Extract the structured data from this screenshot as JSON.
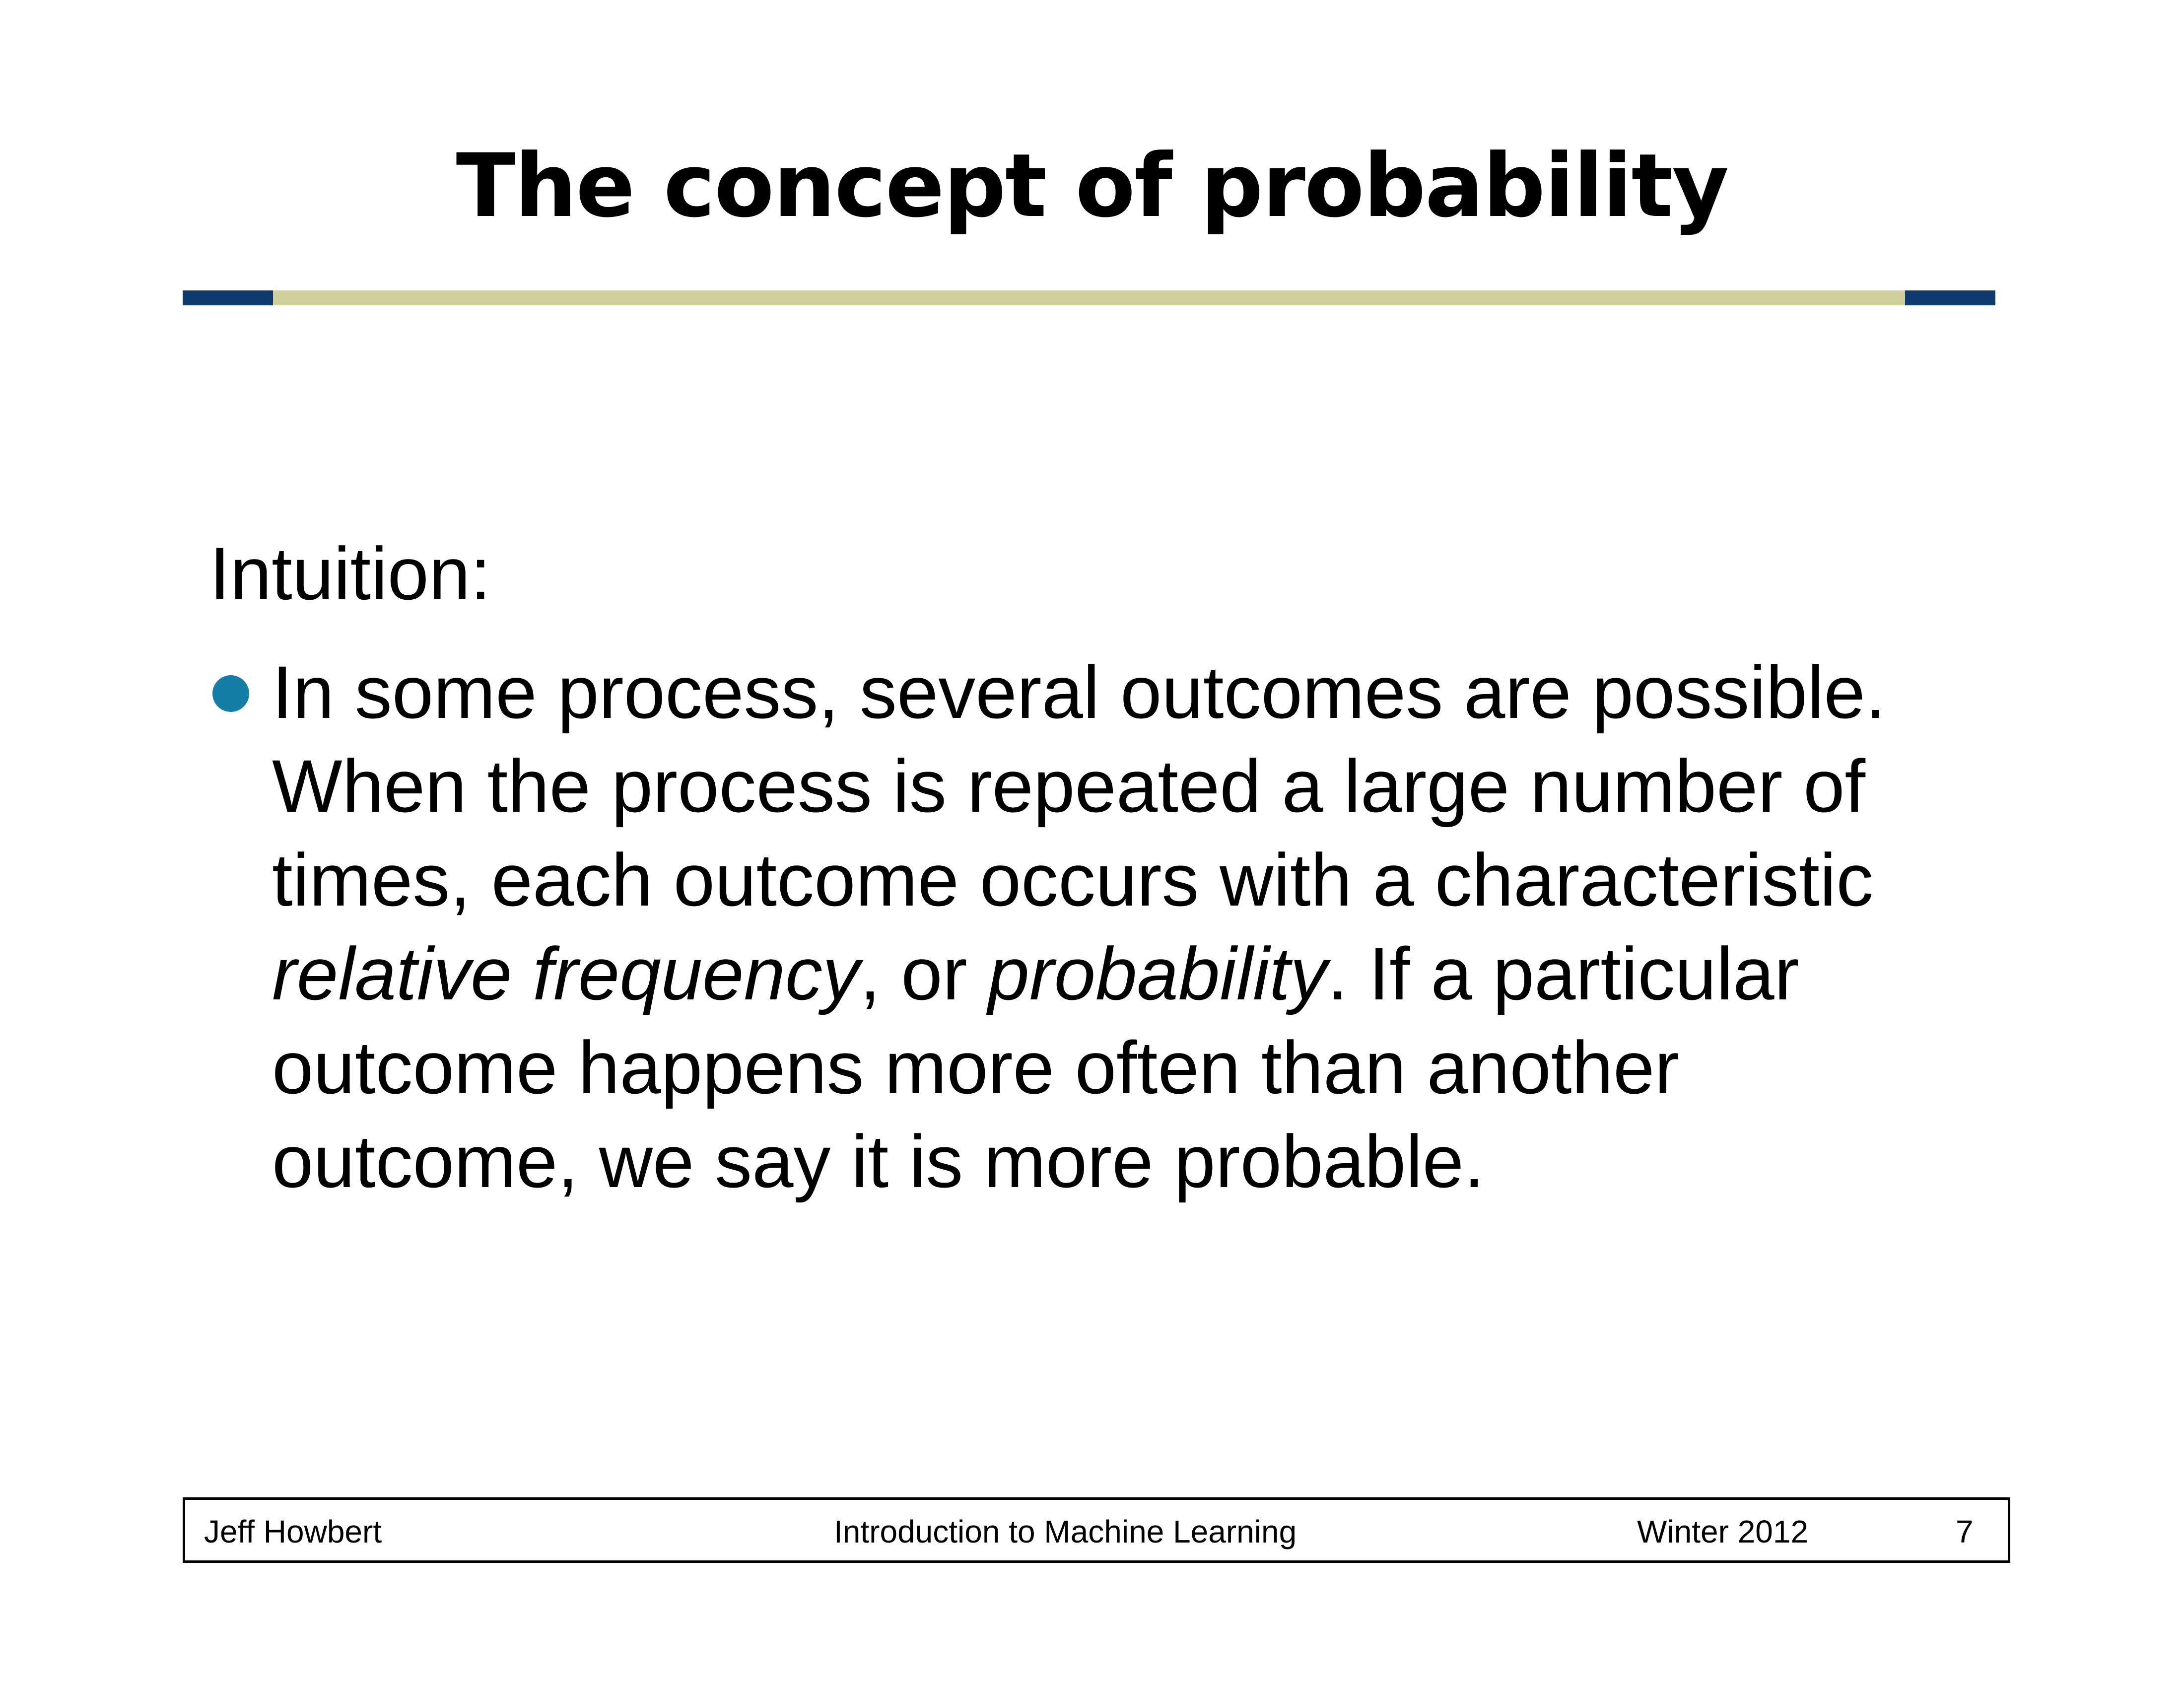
{
  "slide": {
    "title": "The concept of probability",
    "intro_label": "Intuition:",
    "bullet": {
      "text_1": "In some process, several outcomes are possible. When the process is repeated a large number of times, each outcome occurs with a characteristic ",
      "em_1": "relative frequency",
      "text_2": ", or ",
      "em_2": "probability",
      "text_3": ".  If a particular outcome happens more often than another outcome, we say it is more probable."
    }
  },
  "footer": {
    "author": "Jeff Howbert",
    "course": "Introduction to Machine Learning",
    "term": "Winter 2012",
    "page": "7"
  },
  "colors": {
    "rule_main": "#cfcf9c",
    "rule_caps": "#0e3a6e",
    "bullet": "#147ea6"
  }
}
